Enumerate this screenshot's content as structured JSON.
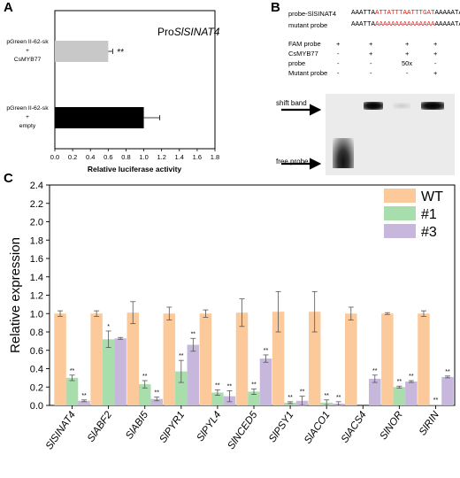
{
  "panel_labels": {
    "a": "A",
    "b": "B",
    "c": "C"
  },
  "panel_a": {
    "title_prefix": "Pro",
    "title_italic": "SlSINAT4",
    "bar_labels": [
      [
        "pGreen II-62-sk",
        "+",
        "CsMYB77"
      ],
      [
        "pGreen II-62-sk",
        "+",
        "empty"
      ]
    ],
    "significance": "**",
    "xlabel": "Relative luciferase activity",
    "xticks": [
      "0.0",
      "0.2",
      "0.4",
      "0.6",
      "0.8",
      "1.0",
      "1.2",
      "1.4",
      "1.6",
      "1.8"
    ]
  },
  "panel_b": {
    "probe_label": "probe-SlSINAT4",
    "probe_seq": {
      "pre": "AAATTA",
      "core": "ATTATTTAATTTGAT",
      "post": "AAAAATA"
    },
    "mutant_label": "mutant probe",
    "mutant_seq": {
      "pre": "AAATTA",
      "core": "AAAAAAAAAAAAAAA",
      "post": "AAAAATA"
    },
    "table_rows": [
      {
        "name": "FAM probe",
        "cells": [
          "+",
          "+",
          "+",
          "+"
        ]
      },
      {
        "name": "CsMYB77",
        "cells": [
          "-",
          "+",
          "+",
          "+"
        ]
      },
      {
        "name": "probe",
        "cells": [
          "-",
          "-",
          "50x",
          "-"
        ]
      },
      {
        "name": "Mutant probe",
        "cells": [
          "-",
          "-",
          "-",
          "+"
        ]
      }
    ],
    "shift_band_label": "shift band",
    "free_probe_label": "free probe"
  },
  "chart_data": [
    {
      "type": "bar",
      "orientation": "horizontal",
      "categories": [
        "pGreen II-62-sk + CsMYB77",
        "pGreen II-62-sk + empty"
      ],
      "values": [
        0.6,
        1.0
      ],
      "errors": [
        0.05,
        0.18
      ],
      "colors": [
        "#c8c8c8",
        "#000000"
      ],
      "xlabel": "Relative luciferase activity",
      "xlim": [
        0,
        1.8
      ],
      "significance": [
        "**",
        ""
      ]
    },
    {
      "type": "bar",
      "categories": [
        "SlSINAT4",
        "SlABF2",
        "SlABI5",
        "SlPYR1",
        "SlPYL4",
        "SlNCED5",
        "SlPSY1",
        "SlACO1",
        "SlACS4",
        "SlNOR",
        "SlRIN"
      ],
      "series": [
        {
          "name": "WT",
          "color": "#fbc99a",
          "values": [
            1.0,
            1.0,
            1.01,
            1.0,
            1.0,
            1.01,
            1.02,
            1.02,
            1.0,
            1.0,
            1.0
          ],
          "errors": [
            0.03,
            0.03,
            0.12,
            0.07,
            0.04,
            0.15,
            0.22,
            0.22,
            0.07,
            0.01,
            0.03
          ],
          "sig": [
            "",
            "",
            "",
            "",
            "",
            "",
            "",
            "",
            "",
            "",
            ""
          ]
        },
        {
          "name": "#1",
          "color": "#a7deab",
          "values": [
            0.3,
            0.72,
            0.23,
            0.37,
            0.14,
            0.15,
            0.03,
            0.03,
            0.0,
            0.2,
            0.01
          ],
          "errors": [
            0.03,
            0.09,
            0.04,
            0.12,
            0.03,
            0.03,
            0.01,
            0.03,
            0.0,
            0.01,
            0.0
          ],
          "sig": [
            "**",
            "*",
            "**",
            "**",
            "**",
            "**",
            "**",
            "**",
            "",
            "**",
            "**"
          ]
        },
        {
          "name": "#3",
          "color": "#c8b7dc",
          "values": [
            0.05,
            0.73,
            0.07,
            0.66,
            0.1,
            0.51,
            0.05,
            0.02,
            0.29,
            0.26,
            0.31
          ],
          "errors": [
            0.01,
            0.01,
            0.02,
            0.07,
            0.06,
            0.04,
            0.05,
            0.02,
            0.04,
            0.01,
            0.01
          ],
          "sig": [
            "**",
            "",
            "**",
            "**",
            "**",
            "**",
            "**",
            "**",
            "**",
            "**",
            "**"
          ]
        }
      ],
      "ylabel": "Relative expression",
      "ylim": [
        0,
        2.4
      ],
      "yticks": [
        "0.0",
        "0.2",
        "0.4",
        "0.6",
        "0.8",
        "1.0",
        "1.2",
        "1.4",
        "1.6",
        "1.8",
        "2.0",
        "2.2",
        "2.4"
      ],
      "legend": "top-right"
    }
  ]
}
